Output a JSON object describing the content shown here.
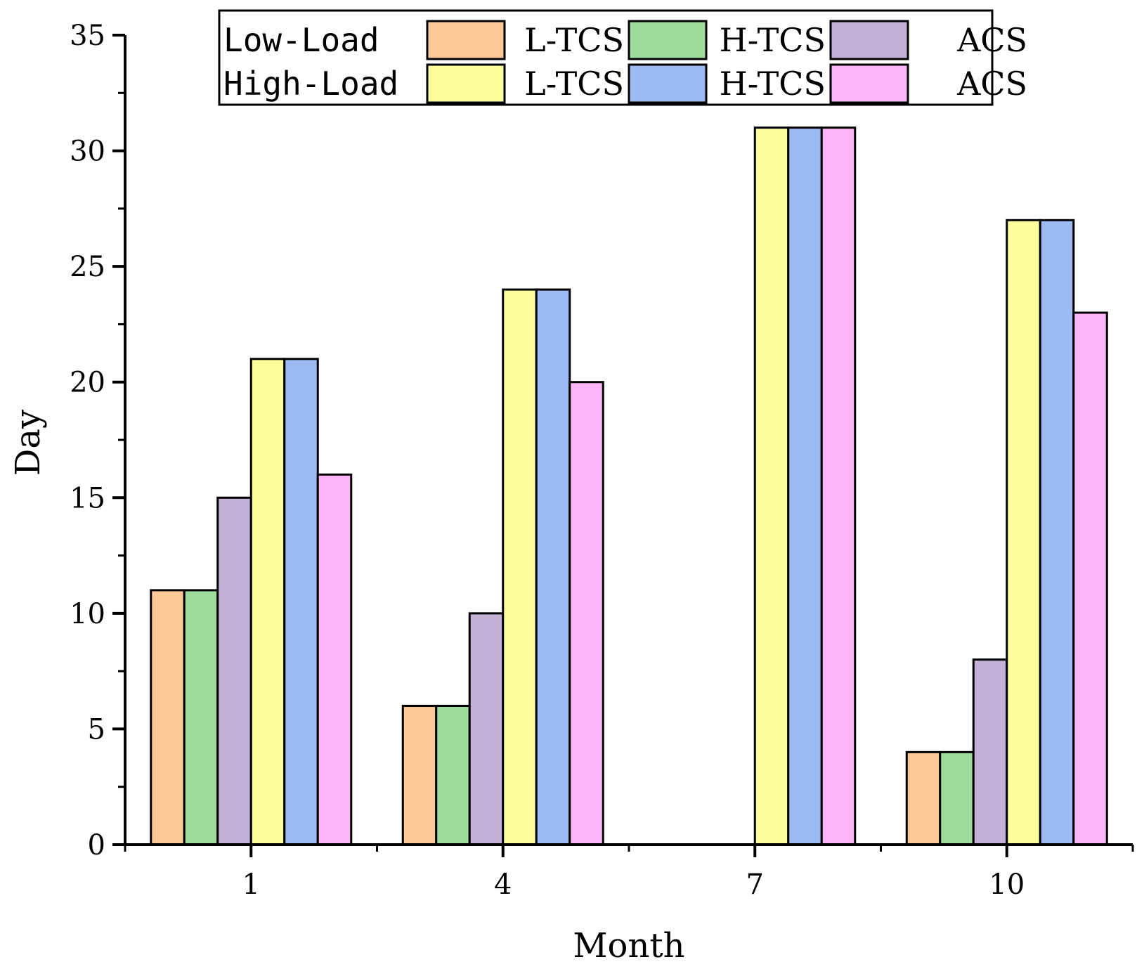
{
  "chart_data": {
    "type": "bar",
    "title": "",
    "xlabel": "Month",
    "ylabel": "Day",
    "categories": [
      "1",
      "4",
      "7",
      "10"
    ],
    "ylim": [
      0,
      35
    ],
    "yticks": [
      0,
      5,
      10,
      15,
      20,
      25,
      30,
      35
    ],
    "grid": false,
    "legend_position": "top",
    "legend_groups": [
      "Low-Load",
      "High-Load"
    ],
    "series": [
      {
        "name": "L-TCS",
        "group": "Low-Load",
        "color": "#FAC996",
        "values": [
          11,
          6,
          0,
          4
        ]
      },
      {
        "name": "H-TCS",
        "group": "Low-Load",
        "color": "#A0DB9E",
        "values": [
          11,
          6,
          0,
          4
        ]
      },
      {
        "name": "ACS",
        "group": "Low-Load",
        "color": "#C3B1D6",
        "values": [
          15,
          10,
          0,
          8
        ]
      },
      {
        "name": "L-TCS",
        "group": "High-Load",
        "color": "#FEFE9C",
        "values": [
          21,
          24,
          31,
          27
        ]
      },
      {
        "name": "H-TCS",
        "group": "High-Load",
        "color": "#9DBBF2",
        "values": [
          21,
          24,
          31,
          27
        ]
      },
      {
        "name": "ACS",
        "group": "High-Load",
        "color": "#FCB5F6",
        "values": [
          16,
          20,
          31,
          23
        ]
      }
    ]
  }
}
